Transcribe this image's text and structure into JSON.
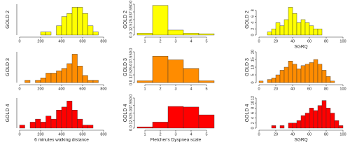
{
  "chart_data": [
    {
      "type": "histogram",
      "ylabel": "GOLD 2",
      "color": "#ffff00",
      "bins": [
        200,
        250,
        300,
        350,
        400,
        450,
        500,
        550,
        600,
        650,
        700,
        750
      ],
      "values": [
        1,
        1,
        0,
        3,
        6,
        7,
        9,
        9,
        7,
        3,
        1
      ],
      "xlim": [
        0,
        800
      ],
      "xticks": [
        0,
        200,
        400,
        600,
        800
      ],
      "ylim": [
        0,
        10
      ]
    },
    {
      "type": "histogram",
      "ylabel": "GOLD 2",
      "color": "#ffff00",
      "bins": [
        0.5,
        1.5,
        2.5,
        3.5,
        4.5,
        5.5
      ],
      "values": [
        3,
        48,
        8,
        3,
        2
      ],
      "xlim": [
        0.5,
        5.5
      ],
      "xticks": [
        1,
        2,
        3,
        4,
        5
      ],
      "ylim": [
        0,
        50
      ],
      "yticks": [
        {
          "value": 0,
          "label": "0.0"
        },
        12.5,
        {
          "value": 25,
          "label": "25.0"
        },
        37.5,
        {
          "value": 50,
          "label": "50.0"
        }
      ]
    },
    {
      "type": "histogram",
      "ylabel": "GOLD 2",
      "xlabel": "SGRQ",
      "color": "#ffff00",
      "bins": [
        10,
        15,
        20,
        25,
        30,
        35,
        40,
        45,
        50,
        55,
        60,
        65,
        70,
        75
      ],
      "values": [
        1,
        2,
        4,
        3,
        5,
        9,
        7,
        4,
        5,
        4,
        3,
        2,
        2
      ],
      "xlim": [
        0,
        100
      ],
      "xticks": [
        0,
        20,
        40,
        60,
        80,
        100
      ],
      "ylim": [
        0,
        10
      ],
      "yticks": [
        0,
        2,
        4,
        6,
        8
      ]
    },
    {
      "type": "histogram",
      "ylabel": "GOLD 3",
      "color": "#ff8c00",
      "bins": [
        50,
        100,
        150,
        200,
        250,
        300,
        350,
        400,
        450,
        500,
        550,
        600,
        650,
        700,
        750
      ],
      "values": [
        1,
        0,
        1,
        2,
        4,
        4,
        5,
        6,
        8,
        12,
        7,
        3,
        1,
        1
      ],
      "xlim": [
        0,
        800
      ],
      "xticks": [
        0,
        200,
        400,
        600,
        800
      ],
      "ylim": [
        0,
        13
      ]
    },
    {
      "type": "histogram",
      "ylabel": "GOLD 3",
      "color": "#ff8c00",
      "bins": [
        0.5,
        1.5,
        2.5,
        3.5,
        4.5,
        5.5
      ],
      "values": [
        3,
        43,
        37,
        23,
        3
      ],
      "xlim": [
        0.5,
        5.5
      ],
      "xticks": [
        1,
        2,
        3,
        4,
        5
      ],
      "ylim": [
        0,
        50
      ],
      "yticks": [
        {
          "value": 0,
          "label": "0.0"
        },
        12.5,
        {
          "value": 25,
          "label": "25.0"
        },
        37.5,
        {
          "value": 50,
          "label": "50.0"
        }
      ]
    },
    {
      "type": "histogram",
      "ylabel": "GOLD 3",
      "color": "#ff8c00",
      "bins": [
        0,
        5,
        10,
        15,
        20,
        25,
        30,
        35,
        40,
        45,
        50,
        55,
        60,
        65,
        70,
        75,
        80,
        85,
        90
      ],
      "values": [
        1,
        0,
        2,
        3,
        5,
        8,
        10,
        14,
        12,
        9,
        11,
        12,
        13,
        15,
        12,
        8,
        4,
        1
      ],
      "xlim": [
        0,
        100
      ],
      "xticks": [
        0,
        20,
        40,
        60,
        80,
        100
      ],
      "ylim": [
        0,
        20
      ],
      "yticks": [
        0,
        5,
        10,
        15,
        20
      ]
    },
    {
      "type": "histogram",
      "ylabel": "GOLD 4",
      "xlabel": "6 minutes walking distance",
      "color": "#ff0000",
      "bins": [
        0,
        50,
        100,
        150,
        200,
        250,
        300,
        350,
        400,
        450,
        500,
        550,
        600,
        650,
        700
      ],
      "values": [
        1,
        0,
        2,
        3,
        2,
        4,
        3,
        6,
        7,
        9,
        6,
        3,
        1,
        1
      ],
      "xlim": [
        0,
        800
      ],
      "xticks": [
        0,
        200,
        400,
        600,
        800
      ],
      "ylim": [
        0,
        10
      ]
    },
    {
      "type": "histogram",
      "ylabel": "GOLD 4",
      "xlabel": "Fletcher's Dyspnea scale",
      "color": "#ff0000",
      "bins": [
        0.5,
        1.5,
        2.5,
        3.5,
        4.5,
        5.5
      ],
      "values": [
        2,
        10,
        36,
        35,
        22
      ],
      "xlim": [
        0.5,
        5.5
      ],
      "xticks": [
        1,
        2,
        3,
        4,
        5
      ],
      "ylim": [
        0,
        50
      ],
      "yticks": [
        {
          "value": 0,
          "label": "0.0"
        },
        12.5,
        {
          "value": 25,
          "label": "25.0"
        },
        37.5,
        {
          "value": 50,
          "label": "50.0"
        }
      ]
    },
    {
      "type": "histogram",
      "ylabel": "GOLD 4",
      "xlabel": "SGRQ",
      "color": "#ff0000",
      "bins": [
        15,
        20,
        25,
        30,
        35,
        40,
        45,
        50,
        55,
        60,
        65,
        70,
        75,
        80,
        85,
        90,
        95,
        100
      ],
      "values": [
        1,
        0,
        1,
        0,
        2,
        2,
        3,
        5,
        6,
        8,
        7,
        9,
        11,
        8,
        6,
        3,
        1
      ],
      "xlim": [
        0,
        100
      ],
      "xticks": [
        0,
        20,
        40,
        60,
        80,
        100
      ],
      "ylim": [
        0,
        12
      ],
      "yticks": [
        0,
        2,
        4,
        6,
        8,
        10,
        12
      ]
    }
  ]
}
